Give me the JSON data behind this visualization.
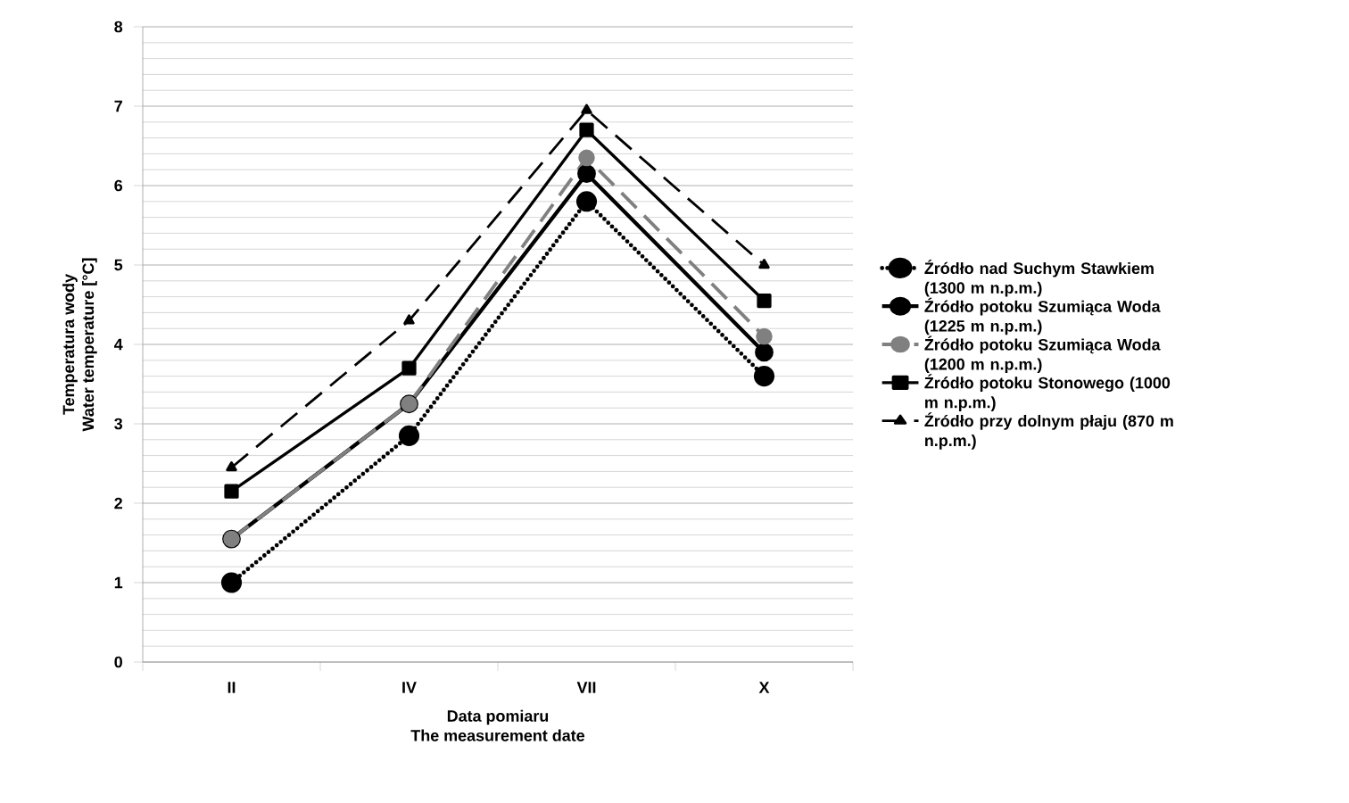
{
  "chart_data": {
    "type": "line",
    "xlabel": "Data pomiaru\nThe measurement date",
    "ylabel": "Temperatura wody\nWater temperature [°C]",
    "categories": [
      "II",
      "IV",
      "VII",
      "X"
    ],
    "series": [
      {
        "name": "Źródło nad Suchym Stawkiem (1300 m n.p.m.)",
        "color": "#000000",
        "marker": "circle",
        "line_style": "dotted",
        "values": [
          1.0,
          2.85,
          5.8,
          3.6
        ]
      },
      {
        "name": "Źródło potoku Szumiąca Woda (1225 m n.p.m.)",
        "color": "#000000",
        "marker": "circle",
        "line_style": "solid",
        "values": [
          1.55,
          3.25,
          6.15,
          3.9
        ]
      },
      {
        "name": "Źródło potoku Szumiąca Woda (1200 m n.p.m.)",
        "color": "#808080",
        "marker": "circle",
        "line_style": "dashed",
        "values": [
          1.55,
          3.25,
          6.35,
          4.1
        ]
      },
      {
        "name": "Źródło potoku Stonowego (1000 m n.p.m.)",
        "color": "#000000",
        "marker": "square",
        "line_style": "solid",
        "values": [
          2.15,
          3.7,
          6.7,
          4.55
        ]
      },
      {
        "name": "Źródło przy dolnym płaju (870 m n.p.m.)",
        "color": "#000000",
        "marker": "triangle",
        "line_style": "dashed",
        "values": [
          2.45,
          4.3,
          6.95,
          5.0
        ]
      }
    ],
    "ylim": [
      0,
      8
    ],
    "yticks": [
      0,
      1,
      2,
      3,
      4,
      5,
      6,
      7,
      8
    ],
    "grid": "y",
    "legend": "right"
  }
}
